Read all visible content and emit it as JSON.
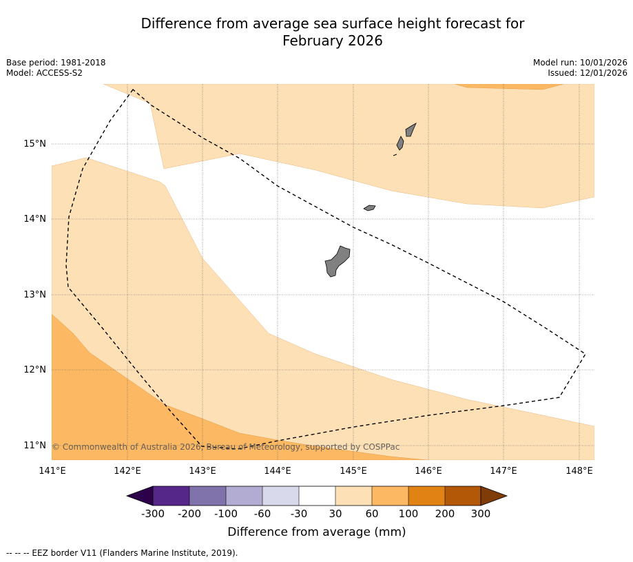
{
  "title_line1": "Difference from average sea surface height forecast for",
  "title_line2": "February 2026",
  "meta": {
    "base_period": "Base period: 1981-2018",
    "model": "Model: ACCESS-S2",
    "model_run": "Model run: 10/01/2026",
    "issued": "Issued: 12/01/2026"
  },
  "map": {
    "lon_labels": [
      "141°E",
      "142°E",
      "143°E",
      "144°E",
      "145°E",
      "146°E",
      "147°E",
      "148°E"
    ],
    "lat_labels": [
      "15°N",
      "14°N",
      "13°N",
      "12°N",
      "11°N"
    ],
    "copyright": "© Commonwealth of Australia 2026, Bureau of Meteorology, supported by COSPPac",
    "land_color": "#808080",
    "eez_line_color": "#000000"
  },
  "colorbar": {
    "tick_labels": [
      "-300",
      "-200",
      "-100",
      "-60",
      "-30",
      "30",
      "60",
      "100",
      "200",
      "300"
    ],
    "colors": [
      "#2d004b",
      "#542788",
      "#8073ac",
      "#b2abd2",
      "#d8daeb",
      "#ffffff",
      "#fee0b6",
      "#fdb863",
      "#e08214",
      "#b35806",
      "#7f3b08"
    ],
    "label": "Difference from average (mm)"
  },
  "footer": "-- -- -- EEZ border V11 (Flanders Marine Institute, 2019)."
}
